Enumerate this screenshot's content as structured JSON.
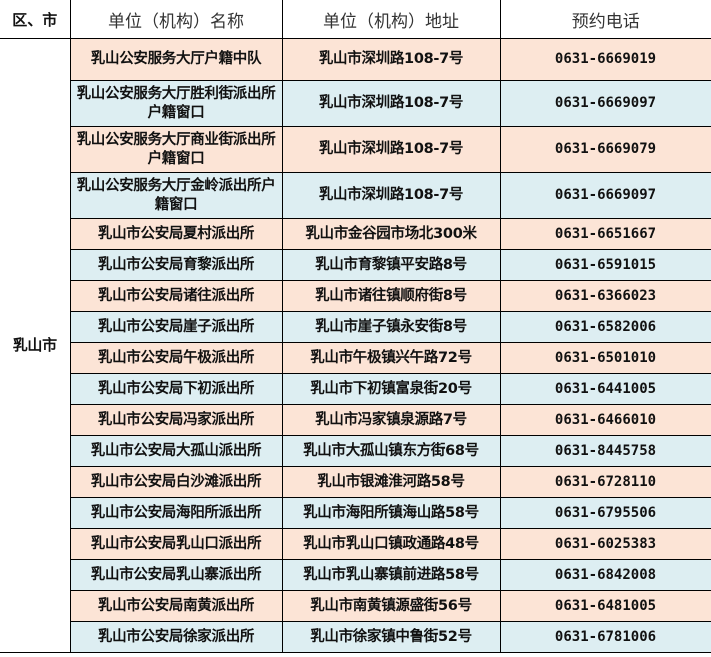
{
  "headers": [
    "区、市",
    "单位（机构）名称",
    "单位（机构）地址",
    "预约电话"
  ],
  "district": "乳山市",
  "row_colors": {
    "peach": "#fce4d6",
    "blue": "#ddeef2"
  },
  "rows": [
    {
      "name": "乳山公安服务大厅户籍中队",
      "address": "乳山市深圳路108-7号",
      "phone": "0631-6669019"
    },
    {
      "name": "乳山公安服务大厅胜利街派出所户籍窗口",
      "address": "乳山市深圳路108-7号",
      "phone": "0631-6669097"
    },
    {
      "name": "乳山公安服务大厅商业街派出所户籍窗口",
      "address": "乳山市深圳路108-7号",
      "phone": "0631-6669079"
    },
    {
      "name": "乳山公安服务大厅金岭派出所户籍窗口",
      "address": "乳山市深圳路108-7号",
      "phone": "0631-6669097"
    },
    {
      "name": "乳山市公安局夏村派出所",
      "address": "乳山市金谷园市场北300米",
      "phone": "0631-6651667"
    },
    {
      "name": "乳山市公安局育黎派出所",
      "address": "乳山市育黎镇平安路8号",
      "phone": "0631-6591015"
    },
    {
      "name": "乳山市公安局诸往派出所",
      "address": "乳山市诸往镇顺府街8号",
      "phone": "0631-6366023"
    },
    {
      "name": "乳山市公安局崖子派出所",
      "address": "乳山市崖子镇永安街8号",
      "phone": "0631-6582006"
    },
    {
      "name": "乳山市公安局午极派出所",
      "address": "乳山市午极镇兴午路72号",
      "phone": "0631-6501010"
    },
    {
      "name": "乳山市公安局下初派出所",
      "address": "乳山市下初镇富泉街20号",
      "phone": "0631-6441005"
    },
    {
      "name": "乳山市公安局冯家派出所",
      "address": "乳山市冯家镇泉源路7号",
      "phone": "0631-6466010"
    },
    {
      "name": "乳山市公安局大孤山派出所",
      "address": "乳山市大孤山镇东方街68号",
      "phone": "0631-8445758"
    },
    {
      "name": "乳山市公安局白沙滩派出所",
      "address": "乳山市银滩淮河路58号",
      "phone": "0631-6728110"
    },
    {
      "name": "乳山市公安局海阳所派出所",
      "address": "乳山市海阳所镇海山路58号",
      "phone": "0631-6795506"
    },
    {
      "name": "乳山市公安局乳山口派出所",
      "address": "乳山市乳山口镇政通路48号",
      "phone": "0631-6025383"
    },
    {
      "name": "乳山市公安局乳山寨派出所",
      "address": "乳山市乳山寨镇前进路58号",
      "phone": "0631-6842008"
    },
    {
      "name": "乳山市公安局南黄派出所",
      "address": "乳山市南黄镇源盛街56号",
      "phone": "0631-6481005"
    },
    {
      "name": "乳山市公安局徐家派出所",
      "address": "乳山市徐家镇中鲁街52号",
      "phone": "0631-6781006"
    }
  ]
}
